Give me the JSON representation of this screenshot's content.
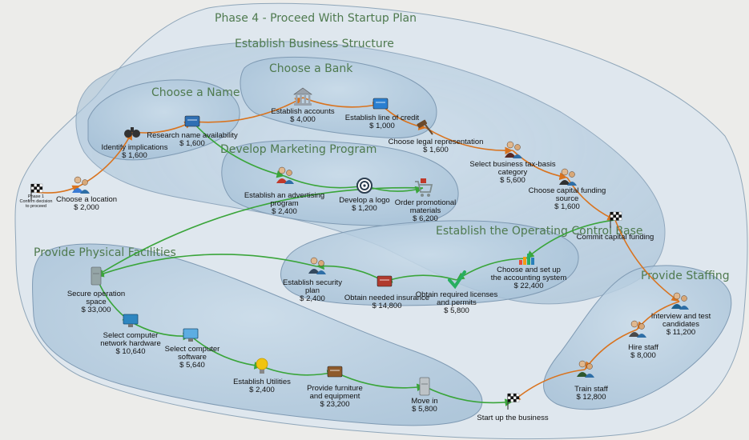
{
  "groups": [
    {
      "id": "phase4",
      "title": "Phase 4 - Proceed With Startup Plan"
    },
    {
      "id": "business",
      "title": "Establish Business Structure"
    },
    {
      "id": "bank",
      "title": "Choose a Bank"
    },
    {
      "id": "name",
      "title": "Choose a Name"
    },
    {
      "id": "marketing",
      "title": "Develop Marketing Program"
    },
    {
      "id": "control",
      "title": "Establish the Operating Control Base"
    },
    {
      "id": "facilities",
      "title": "Provide Physical Facilities"
    },
    {
      "id": "staffing",
      "title": "Provide Staffing"
    }
  ],
  "nodes": [
    {
      "id": "phase1",
      "lines": [
        "Phase 1",
        "Confirm decision",
        "to proceed"
      ],
      "icon": "checkered-flag-icon",
      "small": true
    },
    {
      "id": "location",
      "lines": [
        "Choose a location",
        "$ 2,000"
      ],
      "icon": "people-map-icon"
    },
    {
      "id": "identify",
      "lines": [
        "Identify implications",
        "$ 1,600"
      ],
      "icon": "binoculars-icon"
    },
    {
      "id": "research",
      "lines": [
        "Research name availability",
        "$ 1,600"
      ],
      "icon": "book-icon"
    },
    {
      "id": "accounts",
      "lines": [
        "Establish accounts",
        "$ 4,000"
      ],
      "icon": "bank-building-icon"
    },
    {
      "id": "credit",
      "lines": [
        "Establish line of credit",
        "$ 1,000"
      ],
      "icon": "credit-card-icon"
    },
    {
      "id": "legal",
      "lines": [
        "Choose legal representation",
        "$ 1,600"
      ],
      "icon": "gavel-icon"
    },
    {
      "id": "taxbasis",
      "lines": [
        "Select business tax-basis",
        "category",
        "$ 5,600"
      ],
      "icon": "businesswoman-icon"
    },
    {
      "id": "funding",
      "lines": [
        "Choose capital funding",
        "source",
        "$ 1,600"
      ],
      "icon": "businessman-icon"
    },
    {
      "id": "commit",
      "lines": [
        "Commit capital funding"
      ],
      "icon": "checkered-flag-icon"
    },
    {
      "id": "advertising",
      "lines": [
        "Establish an advertising",
        "program",
        "$ 2,400"
      ],
      "icon": "presenter-icon"
    },
    {
      "id": "logo",
      "lines": [
        "Develop a logo",
        "$ 1,200"
      ],
      "icon": "target-icon"
    },
    {
      "id": "promo",
      "lines": [
        "Order promotional",
        "materials",
        "$ 6,200"
      ],
      "icon": "shopping-cart-icon"
    },
    {
      "id": "accounting",
      "lines": [
        "Choose and set up",
        "the accounting system",
        "$ 22,400"
      ],
      "icon": "bar-chart-icon"
    },
    {
      "id": "licenses",
      "lines": [
        "Obtain required licenses",
        "and permits",
        "$ 5,800"
      ],
      "icon": "checkmark-icon"
    },
    {
      "id": "insurance",
      "lines": [
        "Obtain needed insurance",
        "$ 14,800"
      ],
      "icon": "document-icon"
    },
    {
      "id": "security",
      "lines": [
        "Establish security",
        "plan",
        "$ 2,400"
      ],
      "icon": "security-guard-icon"
    },
    {
      "id": "space",
      "lines": [
        "Secure operation",
        "space",
        "$ 33,000"
      ],
      "icon": "server-icon"
    },
    {
      "id": "hardware",
      "lines": [
        "Select computer",
        "network hardware",
        "$ 10,640"
      ],
      "icon": "computer-network-icon"
    },
    {
      "id": "software",
      "lines": [
        "Select computer",
        "software",
        "$ 5,640"
      ],
      "icon": "monitor-icon"
    },
    {
      "id": "utilities",
      "lines": [
        "Establish Utilities",
        "$ 2,400"
      ],
      "icon": "light-bulb-icon"
    },
    {
      "id": "furniture",
      "lines": [
        "Provide furniture",
        "and equipment",
        "$ 23,200"
      ],
      "icon": "desk-icon"
    },
    {
      "id": "movein",
      "lines": [
        "Move in",
        "$ 5,800"
      ],
      "icon": "refrigerator-icon"
    },
    {
      "id": "startup",
      "lines": [
        "Start up the business"
      ],
      "icon": "checkered-flag-icon"
    },
    {
      "id": "interview",
      "lines": [
        "Interview and test",
        "candidates",
        "$ 11,200"
      ],
      "icon": "people-icon"
    },
    {
      "id": "hire",
      "lines": [
        "Hire staff",
        "$ 8,000"
      ],
      "icon": "hiring-icon"
    },
    {
      "id": "train",
      "lines": [
        "Train staff",
        "$ 12,800"
      ],
      "icon": "teacher-icon"
    }
  ],
  "links": [
    {
      "from": "phase1",
      "to": "location",
      "color": "orange"
    },
    {
      "from": "location",
      "to": "identify",
      "color": "orange"
    },
    {
      "from": "identify",
      "to": "research",
      "color": "orange"
    },
    {
      "from": "research",
      "to": "accounts",
      "color": "orange"
    },
    {
      "from": "accounts",
      "to": "credit",
      "color": "orange"
    },
    {
      "from": "credit",
      "to": "legal",
      "color": "orange"
    },
    {
      "from": "legal",
      "to": "taxbasis",
      "color": "orange"
    },
    {
      "from": "taxbasis",
      "to": "funding",
      "color": "orange"
    },
    {
      "from": "funding",
      "to": "commit",
      "color": "orange"
    },
    {
      "from": "commit",
      "to": "interview",
      "color": "orange"
    },
    {
      "from": "interview",
      "to": "hire",
      "color": "orange"
    },
    {
      "from": "hire",
      "to": "train",
      "color": "orange"
    },
    {
      "from": "train",
      "to": "startup",
      "color": "orange"
    },
    {
      "from": "research",
      "to": "advertising",
      "color": "green"
    },
    {
      "from": "advertising",
      "to": "logo",
      "color": "green"
    },
    {
      "from": "logo",
      "to": "promo",
      "color": "green"
    },
    {
      "from": "promo",
      "to": "space",
      "color": "green"
    },
    {
      "from": "commit",
      "to": "accounting",
      "color": "green"
    },
    {
      "from": "accounting",
      "to": "licenses",
      "color": "green"
    },
    {
      "from": "licenses",
      "to": "insurance",
      "color": "green"
    },
    {
      "from": "insurance",
      "to": "security",
      "color": "green"
    },
    {
      "from": "security",
      "to": "space",
      "color": "green"
    },
    {
      "from": "space",
      "to": "hardware",
      "color": "green"
    },
    {
      "from": "hardware",
      "to": "software",
      "color": "green"
    },
    {
      "from": "software",
      "to": "utilities",
      "color": "green"
    },
    {
      "from": "utilities",
      "to": "furniture",
      "color": "green"
    },
    {
      "from": "furniture",
      "to": "movein",
      "color": "green"
    },
    {
      "from": "movein",
      "to": "startup",
      "color": "green"
    }
  ],
  "colors": {
    "orange": "#d9731e",
    "green": "#3aa53a",
    "blob_fill": "#b7cde0",
    "blob_stroke": "#7f9ab3",
    "title": "#4f7a4f",
    "background": "#ececea"
  }
}
